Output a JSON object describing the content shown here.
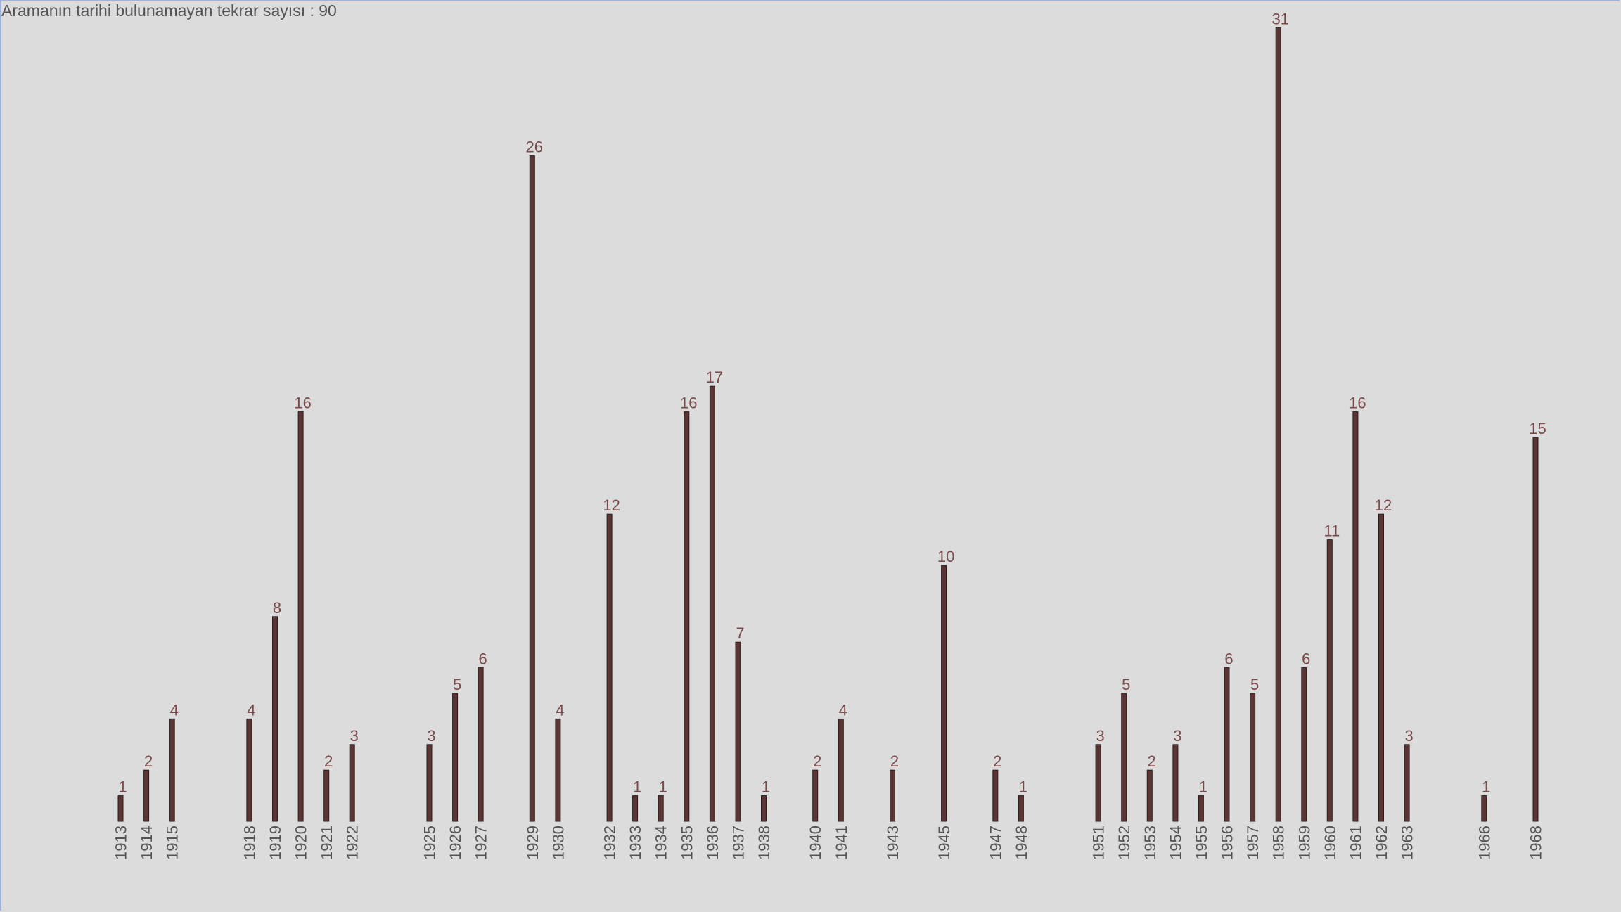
{
  "header": {
    "label": "Aramanın tarihi bulunamayan tekrar sayısı : 90"
  },
  "colors": {
    "background": "#dcdcdc",
    "bar": "#5a3535",
    "value_label": "#7a4a4a",
    "axis_label": "#555555"
  },
  "chart_data": {
    "type": "bar",
    "title": "",
    "xlabel": "",
    "ylabel": "",
    "ylim": [
      0,
      31
    ],
    "grid": false,
    "categories": [
      "1913",
      "1914",
      "1915",
      "1918",
      "1919",
      "1920",
      "1921",
      "1922",
      "1925",
      "1926",
      "1927",
      "1929",
      "1930",
      "1932",
      "1933",
      "1934",
      "1935",
      "1936",
      "1937",
      "1938",
      "1940",
      "1941",
      "1943",
      "1945",
      "1947",
      "1948",
      "1951",
      "1952",
      "1953",
      "1954",
      "1955",
      "1956",
      "1957",
      "1958",
      "1959",
      "1960",
      "1961",
      "1962",
      "1963",
      "1966",
      "1968"
    ],
    "values": [
      1,
      2,
      4,
      4,
      8,
      16,
      2,
      3,
      3,
      5,
      6,
      26,
      4,
      12,
      1,
      1,
      16,
      17,
      7,
      1,
      2,
      4,
      2,
      10,
      2,
      1,
      3,
      5,
      2,
      3,
      1,
      6,
      5,
      31,
      6,
      11,
      16,
      12,
      3,
      1,
      15
    ]
  }
}
